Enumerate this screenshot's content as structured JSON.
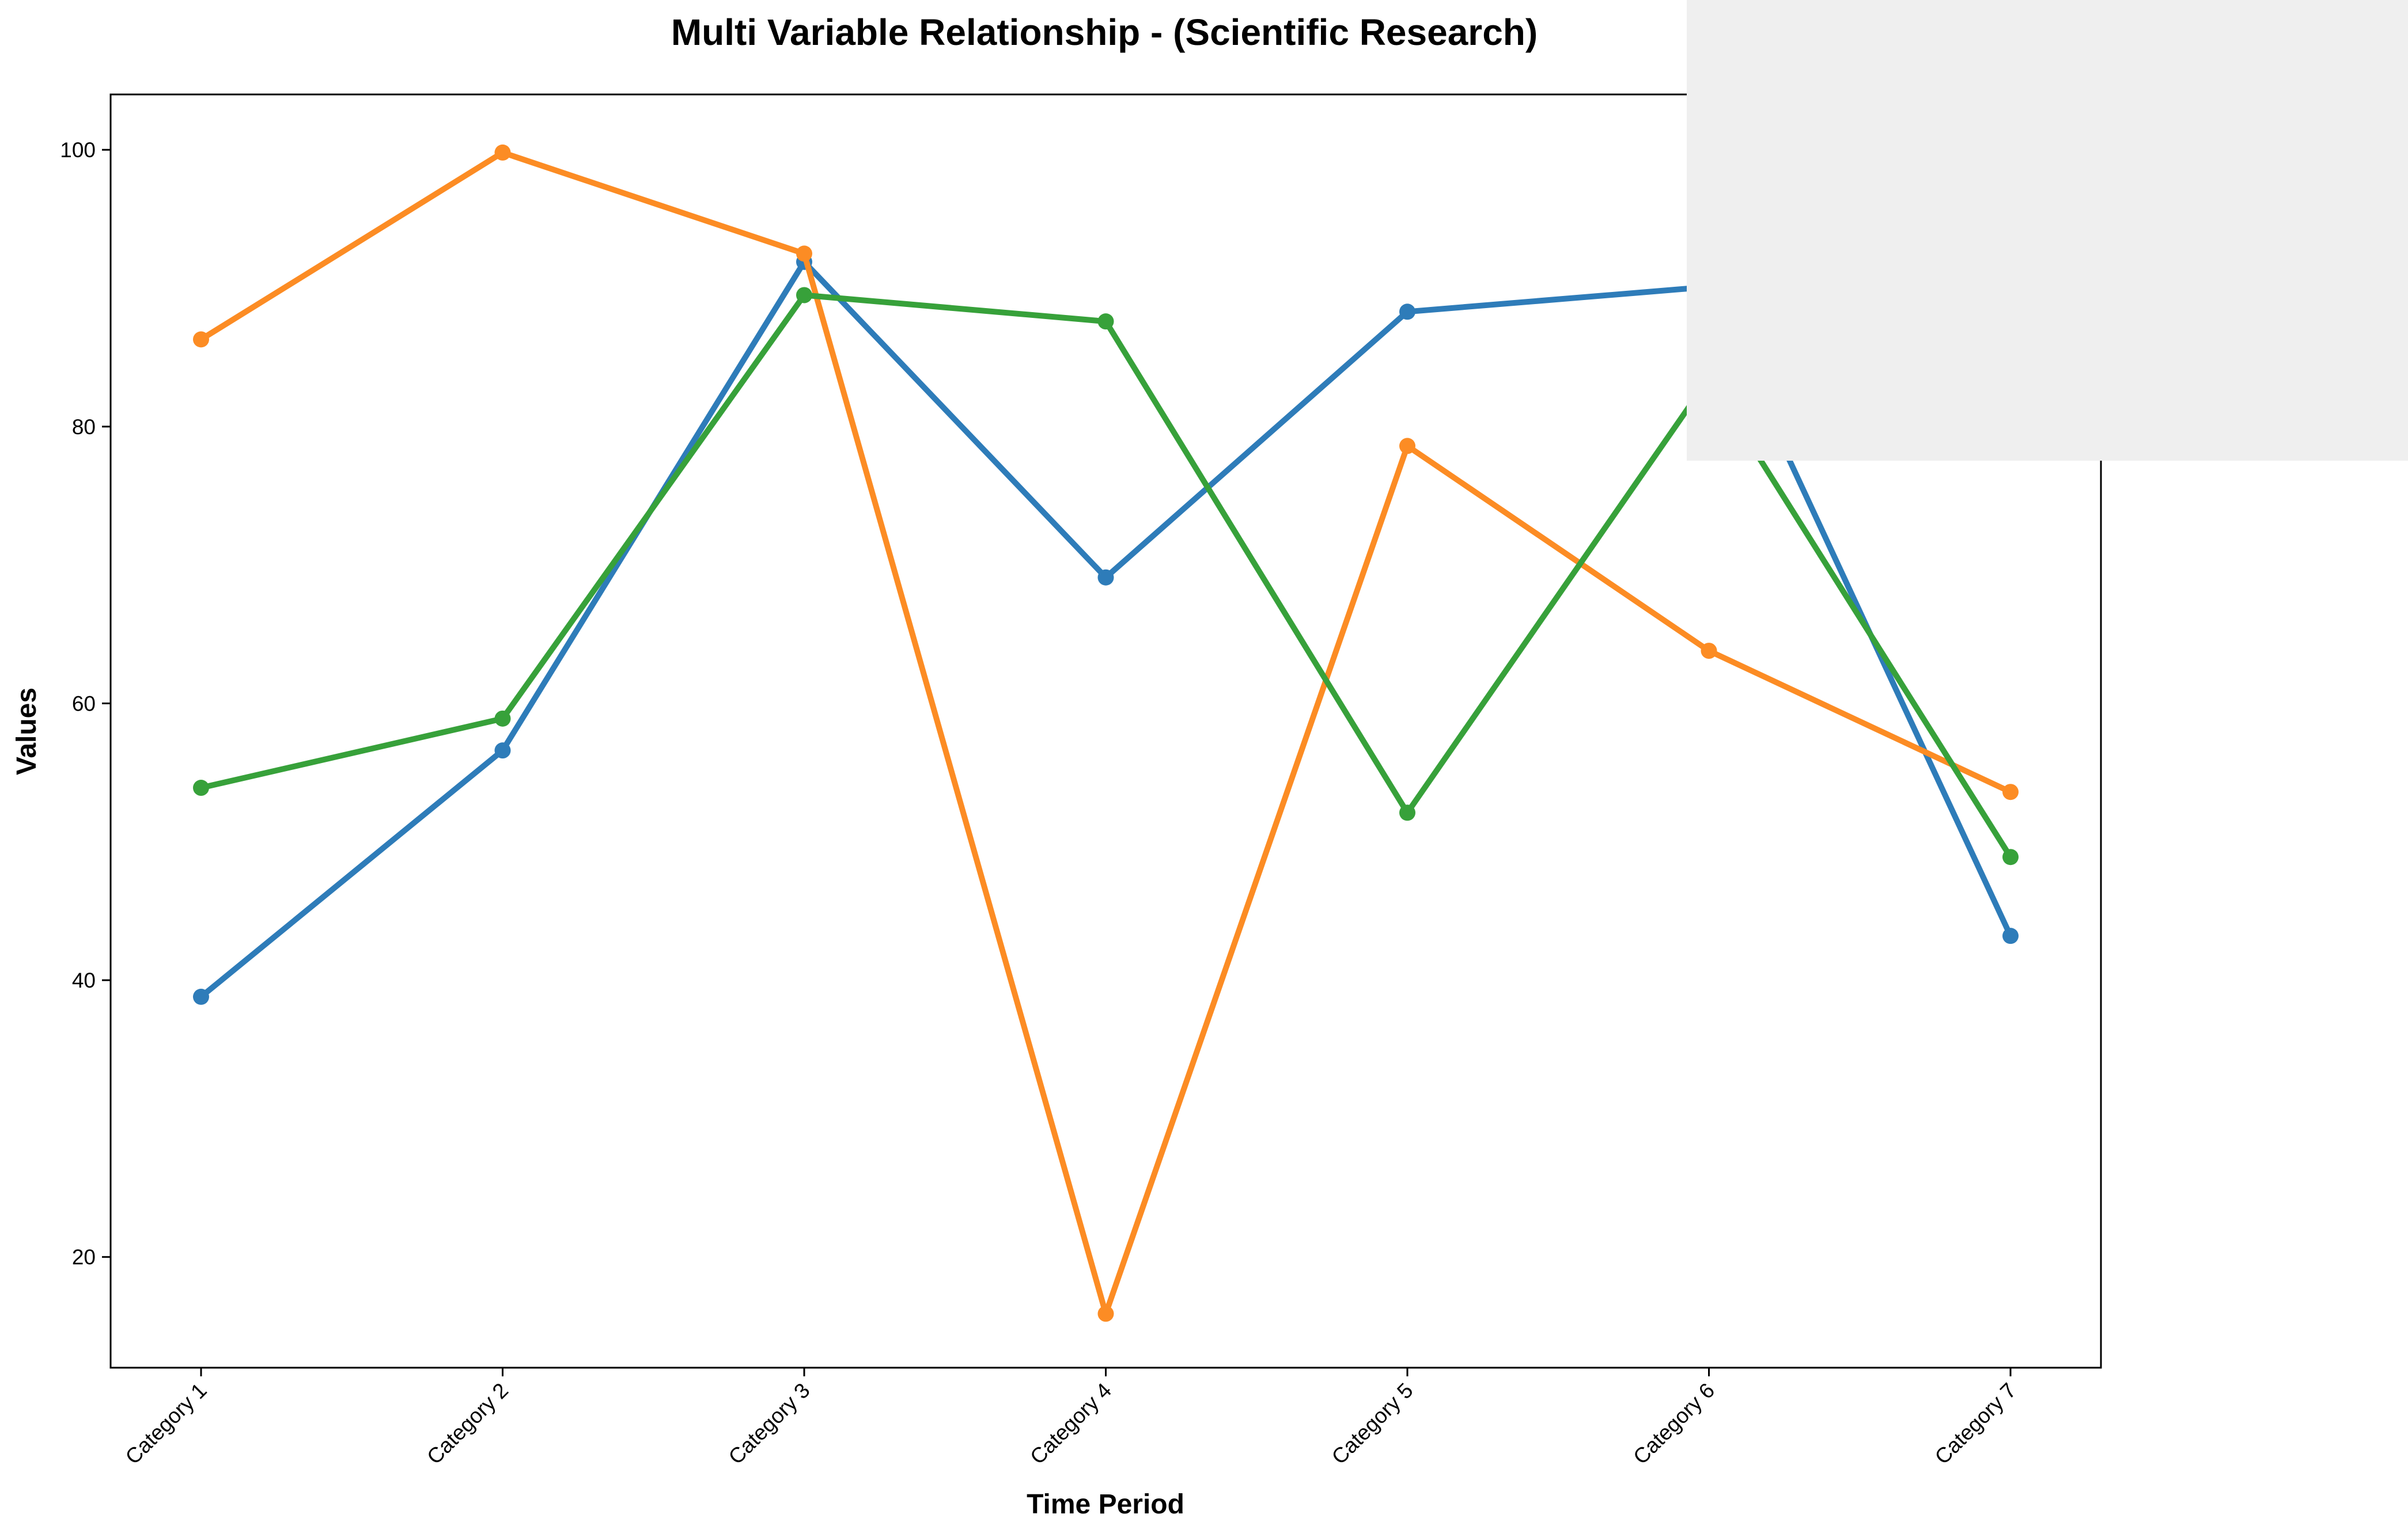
{
  "chart_data": {
    "type": "line",
    "title": "Multi Variable Relationship - (Scientific Research)",
    "xlabel": "Time Period",
    "ylabel": "Values",
    "categories": [
      "Category 1",
      "Category 2",
      "Category 3",
      "Category 4",
      "Category 5",
      "Category 6",
      "Category 7"
    ],
    "ylim": [
      12,
      104
    ],
    "yticks": [
      20,
      40,
      60,
      80,
      100
    ],
    "grid": false,
    "legend": "none",
    "series": [
      {
        "color": "#2e7cb9",
        "values": [
          38.8,
          56.6,
          91.9,
          69.1,
          88.3,
          90.1,
          43.2
        ]
      },
      {
        "color": "#fc8c24",
        "values": [
          86.3,
          99.8,
          92.5,
          15.9,
          78.6,
          63.8,
          53.6
        ]
      },
      {
        "color": "#37a13a",
        "values": [
          53.9,
          58.9,
          89.5,
          87.6,
          52.1,
          83.5,
          48.9
        ]
      }
    ]
  }
}
